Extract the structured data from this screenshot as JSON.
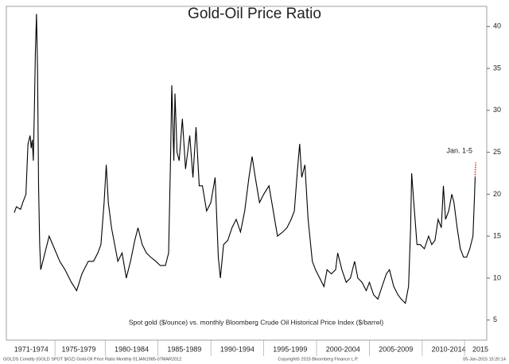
{
  "chart_data": {
    "type": "line",
    "title": "Gold-Oil Price Ratio",
    "subtitle": "Spot gold ($/ounce) vs. monthly Bloomberg Crude Oil Historical Price Index ($/barrel)",
    "footer": [
      "GOLDS Comdty (GOLD SPOT $/OZ) Gold-Oil Price Ratio  Monthly 01JAN1985-07MAR2012",
      "Copyright© 2015 Bloomberg Finance L.P.",
      "05-Jan-2015 15:20:14"
    ],
    "xlim": [
      1970.65,
      2016.1
    ],
    "ylim": [
      2.6,
      42.4
    ],
    "yticks": [
      5,
      10,
      15,
      20,
      25,
      30,
      35,
      40
    ],
    "xticks": [
      {
        "value": 1973,
        "label": "1971-1974"
      },
      {
        "value": 1977.5,
        "label": "1975-1979"
      },
      {
        "value": 1982.5,
        "label": "1980-1984"
      },
      {
        "value": 1987.5,
        "label": "1985-1989"
      },
      {
        "value": 1992.5,
        "label": "1990-1994"
      },
      {
        "value": 1997.5,
        "label": "1995-1999"
      },
      {
        "value": 2002.5,
        "label": "2000-2004"
      },
      {
        "value": 2007.5,
        "label": "2005-2009"
      },
      {
        "value": 2012.5,
        "label": "2010-2014"
      },
      {
        "value": 2015.5,
        "label": "2015"
      }
    ],
    "series": [
      {
        "name": null,
        "color": "#000000",
        "x": [
          1971.4,
          1971.6,
          1972.0,
          1972.2,
          1972.5,
          1972.7,
          1972.9,
          1973.0,
          1973.1,
          1973.2,
          1973.3,
          1973.4,
          1973.5,
          1973.6,
          1973.7,
          1973.8,
          1973.9,
          1974.3,
          1974.7,
          1975.2,
          1975.7,
          1976.2,
          1976.8,
          1977.3,
          1977.8,
          1978.4,
          1978.9,
          1979.3,
          1979.6,
          1979.9,
          1980.1,
          1980.3,
          1980.6,
          1980.9,
          1981.2,
          1981.6,
          1982.0,
          1982.4,
          1982.8,
          1983.1,
          1983.5,
          1983.9,
          1984.3,
          1984.8,
          1985.2,
          1985.7,
          1986.0,
          1986.2,
          1986.3,
          1986.5,
          1986.6,
          1986.8,
          1987.0,
          1987.3,
          1987.6,
          1988.0,
          1988.3,
          1988.6,
          1988.9,
          1989.2,
          1989.6,
          1990.0,
          1990.4,
          1990.7,
          1990.9,
          1991.2,
          1991.6,
          1992.0,
          1992.4,
          1992.8,
          1993.2,
          1993.6,
          1993.9,
          1994.2,
          1994.6,
          1995.0,
          1995.5,
          1995.9,
          1996.3,
          1996.8,
          1997.2,
          1997.6,
          1997.9,
          1998.2,
          1998.4,
          1998.6,
          1998.9,
          1999.2,
          1999.6,
          1999.9,
          2000.3,
          2000.7,
          2001.0,
          2001.4,
          2001.8,
          2002.0,
          2002.4,
          2002.8,
          2003.2,
          2003.6,
          2003.9,
          2004.3,
          2004.7,
          2005.0,
          2005.4,
          2005.8,
          2006.2,
          2006.6,
          2006.9,
          2007.3,
          2007.7,
          2008.0,
          2008.4,
          2008.7,
          2008.9,
          2009.0,
          2009.2,
          2009.5,
          2009.8,
          2010.2,
          2010.6,
          2010.9,
          2011.2,
          2011.5,
          2011.8,
          2012.0,
          2012.2,
          2012.5,
          2012.8,
          2013.0,
          2013.3,
          2013.6,
          2013.9,
          2014.2,
          2014.5,
          2014.8,
          2014.95,
          2015.0
        ],
        "values": [
          17.8,
          18.5,
          18.2,
          19,
          20,
          26,
          27,
          25.5,
          26.5,
          24,
          30,
          37,
          41.5,
          35,
          21,
          14,
          11,
          13,
          15,
          13.5,
          12,
          11,
          9.5,
          8.5,
          10.5,
          12,
          12,
          13,
          14,
          19,
          23.5,
          19,
          16,
          14,
          12,
          13,
          10,
          12,
          14.5,
          16,
          14,
          13,
          12.5,
          12,
          11.5,
          11.5,
          13,
          25,
          33,
          24,
          32,
          25,
          24,
          29,
          23,
          27,
          22,
          28,
          21,
          21,
          18,
          19,
          22,
          12.5,
          10,
          14,
          14.5,
          16,
          17,
          15.5,
          18,
          22,
          24.5,
          22,
          19,
          20,
          21,
          18,
          15,
          15.5,
          16,
          17,
          18,
          23,
          26,
          22,
          23.5,
          17,
          12,
          11,
          10,
          9,
          11,
          10.5,
          11,
          13,
          11,
          9.5,
          10,
          12,
          10,
          9.5,
          8.5,
          9.5,
          8,
          7.5,
          9,
          10.5,
          11,
          9,
          8,
          7.5,
          7,
          9,
          16,
          22.5,
          19,
          14,
          14,
          13.5,
          15,
          14,
          14.5,
          17,
          16,
          21,
          17,
          18,
          20,
          19,
          16,
          13.5,
          12.5,
          12.5,
          13.5,
          15,
          20,
          22
        ]
      },
      {
        "name": "Jan. 1-5",
        "color": "#d03030",
        "x": [
          2015.0,
          2015.05
        ],
        "values": [
          22,
          23.8
        ]
      }
    ]
  }
}
